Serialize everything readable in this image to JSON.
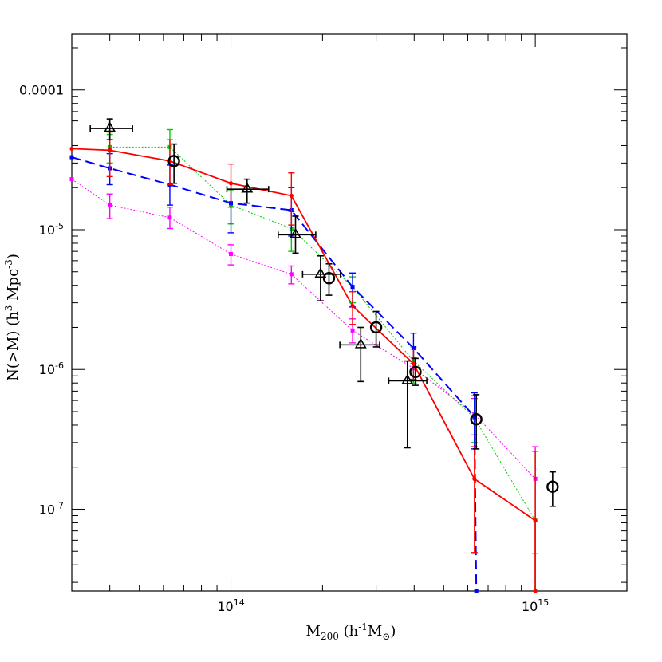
{
  "chart_data": {
    "type": "scatter",
    "title": "",
    "xlabel": {
      "main": "M",
      "sub": "200",
      "unit_open": "  (h",
      "unit_sup": "-1",
      "unit_main": "M",
      "unit_sub": "⊙",
      "unit_close": ")"
    },
    "ylabel": {
      "main": "N(>M)  (h",
      "sup1": "3",
      "mid": " Mpc",
      "sup2": "-3",
      "close": ")"
    },
    "x_scale": "log",
    "y_scale": "log",
    "xlim": [
      30000000000000,
      2000000000000000
    ],
    "ylim": [
      2.6e-08,
      0.00025
    ],
    "x_ticks": [
      {
        "value": 100000000000000,
        "base": "10",
        "exp": "14"
      },
      {
        "value": 1000000000000000,
        "base": "10",
        "exp": "15"
      }
    ],
    "y_ticks": [
      {
        "value": 0.0001,
        "text": "0.0001"
      },
      {
        "value": 1e-05,
        "base": "10",
        "exp": "-5"
      },
      {
        "value": 1e-06,
        "base": "10",
        "exp": "-6"
      },
      {
        "value": 1e-07,
        "base": "10",
        "exp": "-7"
      }
    ],
    "grid": false,
    "series": [
      {
        "style": "dotted",
        "color": "#ff00ff",
        "marker": "square",
        "x": [
          30000000000000,
          40000000000000,
          63000000000000,
          100000000000000,
          158000000000000,
          251000000000000,
          398000000000000,
          631000000000000,
          1000000000000000
        ],
        "y": [
          2.3e-05,
          1.5e-05,
          1.22e-05,
          6.7e-06,
          4.8e-06,
          1.9e-06,
          1.02e-06,
          4.8e-07,
          1.65e-07
        ],
        "err_lo": [
          null,
          1.2e-05,
          1.02e-05,
          5.6e-06,
          4.1e-06,
          1.55e-06,
          8.5e-07,
          3.4e-07,
          4.8e-08
        ],
        "err_hi": [
          null,
          1.8e-05,
          1.45e-05,
          7.8e-06,
          5.5e-06,
          2.3e-06,
          1.22e-06,
          6.2e-07,
          2.8e-07
        ]
      },
      {
        "style": "dotted",
        "color": "#00cc00",
        "marker": "square",
        "x": [
          40000000000000,
          63000000000000,
          100000000000000,
          158000000000000,
          251000000000000,
          398000000000000,
          631000000000000,
          1000000000000000
        ],
        "y": [
          3.9e-05,
          3.9e-05,
          1.5e-05,
          1.02e-05,
          3.9e-06,
          1.15e-06,
          4.5e-07,
          8.3e-08
        ],
        "err_lo": [
          3e-05,
          2.9e-05,
          1.1e-05,
          7e-06,
          3e-06,
          8e-07,
          3e-07,
          2.6e-08
        ],
        "err_hi": [
          4.8e-05,
          5.2e-05,
          1.9e-05,
          1.35e-05,
          4.6e-06,
          1.45e-06,
          6.5e-07,
          2.6e-07
        ]
      },
      {
        "style": "dashed",
        "color": "#0000ff",
        "marker": "square",
        "x": [
          30000000000000,
          40000000000000,
          63000000000000,
          100000000000000,
          158000000000000,
          251000000000000,
          398000000000000,
          631000000000000,
          640000000000000
        ],
        "y": [
          3.3e-05,
          2.75e-05,
          2.1e-05,
          1.55e-05,
          1.38e-05,
          3.9e-06,
          1.42e-06,
          4.6e-07,
          2.6e-08
        ],
        "err_lo": [
          null,
          2.1e-05,
          1.5e-05,
          9.5e-06,
          9e-06,
          2.8e-06,
          1.1e-06,
          2.7e-07,
          null
        ],
        "err_hi": [
          null,
          3.5e-05,
          2.9e-05,
          2.15e-05,
          2e-05,
          4.9e-06,
          1.82e-06,
          6.8e-07,
          null
        ]
      },
      {
        "style": "solid",
        "color": "#ff0000",
        "marker": "dot",
        "x": [
          30000000000000,
          40000000000000,
          63000000000000,
          100000000000000,
          158000000000000,
          251000000000000,
          398000000000000,
          631000000000000,
          1000000000000000,
          1000000000000000
        ],
        "y": [
          3.8e-05,
          3.7e-05,
          3.1e-05,
          2.15e-05,
          1.75e-05,
          2.85e-06,
          1.1e-06,
          1.65e-07,
          8.3e-08,
          2.6e-08
        ],
        "err_lo": [
          null,
          2.4e-05,
          2.1e-05,
          1.45e-05,
          1.08e-05,
          2.1e-06,
          8.5e-07,
          4.9e-08,
          2.6e-08,
          null
        ],
        "err_hi": [
          null,
          5e-05,
          4.4e-05,
          2.95e-05,
          2.55e-05,
          3.6e-06,
          1.4e-06,
          2.8e-07,
          2.6e-07,
          null
        ]
      },
      {
        "style": "none",
        "color": "#000000",
        "marker": "triangle",
        "x": [
          40000000000000,
          113000000000000,
          163000000000000,
          197000000000000,
          267000000000000,
          380000000000000
        ],
        "y": [
          5.3e-05,
          1.95e-05,
          9.2e-06,
          4.8e-06,
          1.5e-06,
          8.3e-07
        ],
        "err_lo": [
          4.4e-05,
          1.55e-05,
          6.8e-06,
          3.1e-06,
          8.2e-07,
          2.75e-07
        ],
        "err_hi": [
          6.2e-05,
          2.3e-05,
          1.25e-05,
          6.5e-06,
          2e-06,
          1.15e-06
        ],
        "xerr_lo": [
          34500000000000,
          97000000000000,
          143000000000000,
          172000000000000,
          228000000000000,
          330000000000000
        ],
        "xerr_hi": [
          47500000000000,
          133000000000000,
          190000000000000,
          229000000000000,
          308000000000000,
          440000000000000
        ]
      },
      {
        "style": "none",
        "color": "#000000",
        "marker": "circle",
        "x": [
          65000000000000,
          210000000000000,
          300000000000000,
          404000000000000,
          640000000000000,
          1140000000000000
        ],
        "y": [
          3.1e-05,
          4.5e-06,
          2e-06,
          9.6e-07,
          4.4e-07,
          1.45e-07
        ],
        "err_lo": [
          2.15e-05,
          3.4e-06,
          1.45e-06,
          7.7e-07,
          2.7e-07,
          1.05e-07
        ],
        "err_hi": [
          4.1e-05,
          5.7e-06,
          2.6e-06,
          1.2e-06,
          6.6e-07,
          1.85e-07
        ]
      }
    ]
  }
}
